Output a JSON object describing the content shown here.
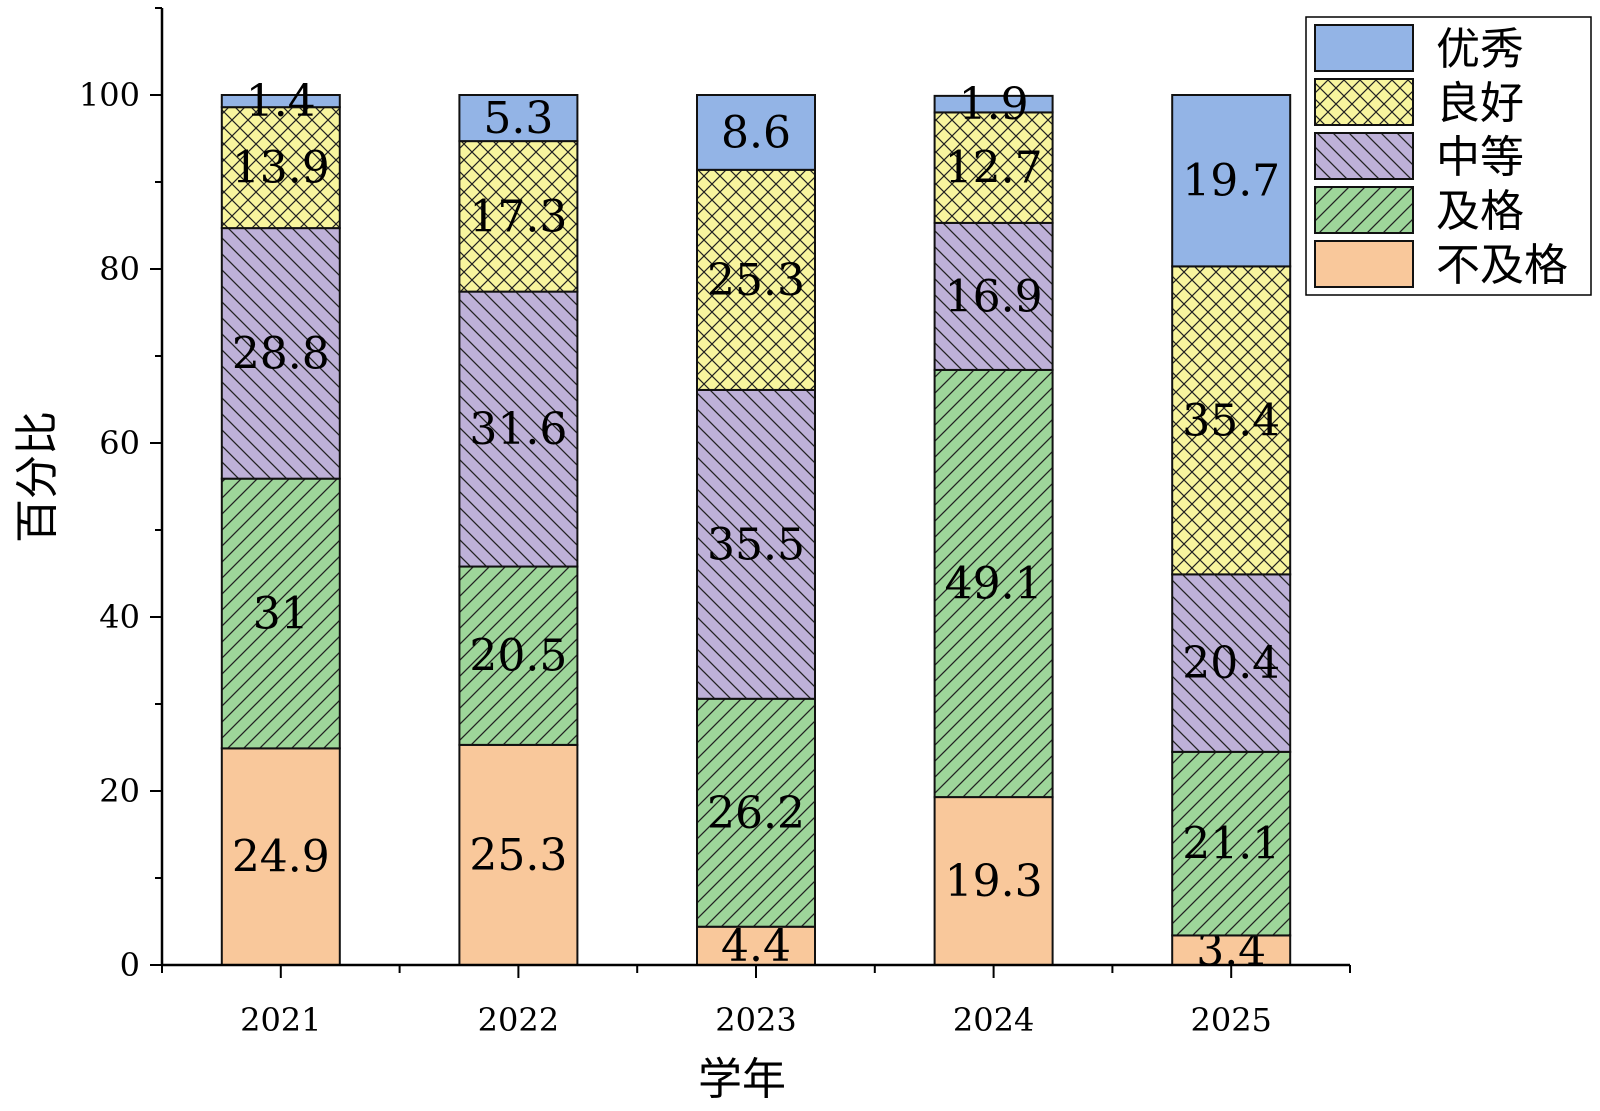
{
  "chart_data": {
    "type": "bar",
    "stacked": true,
    "categories": [
      "2021",
      "2022",
      "2023",
      "2024",
      "2025"
    ],
    "xlabel": "学年",
    "ylabel": "百分比",
    "ylim": [
      0,
      110
    ],
    "yticks": [
      "0",
      "20",
      "40",
      "60",
      "80",
      "100"
    ],
    "legend_position": "top-right",
    "series": [
      {
        "name": "不及格",
        "color": "#F9C89B",
        "pattern": "none",
        "values": [
          24.9,
          25.3,
          4.4,
          19.3,
          3.4
        ],
        "labels": [
          "24.9",
          "25.3",
          "4.4",
          "19.3",
          "3.4"
        ]
      },
      {
        "name": "及格",
        "color": "#9ED69A",
        "pattern": "diagonal-up",
        "values": [
          31,
          20.5,
          26.2,
          49.1,
          21.1
        ],
        "labels": [
          "31",
          "20.5",
          "26.2",
          "49.1",
          "21.1"
        ]
      },
      {
        "name": "中等",
        "color": "#BEB1D8",
        "pattern": "diagonal-down",
        "values": [
          28.8,
          31.6,
          35.5,
          16.9,
          20.4
        ],
        "labels": [
          "28.8",
          "31.6",
          "35.5",
          "16.9",
          "20.4"
        ]
      },
      {
        "name": "良好",
        "color": "#F8F59E",
        "pattern": "crosshatch",
        "values": [
          13.9,
          17.3,
          25.3,
          12.7,
          35.4
        ],
        "labels": [
          "13.9",
          "17.3",
          "25.3",
          "12.7",
          "35.4"
        ]
      },
      {
        "name": "优秀",
        "color": "#93B4E6",
        "pattern": "none",
        "values": [
          1.4,
          5.3,
          8.6,
          1.9,
          19.7
        ],
        "labels": [
          "1.4",
          "5.3",
          "8.6",
          "1.9",
          "19.7"
        ]
      }
    ],
    "legend_order": [
      "优秀",
      "良好",
      "中等",
      "及格",
      "不及格"
    ]
  }
}
